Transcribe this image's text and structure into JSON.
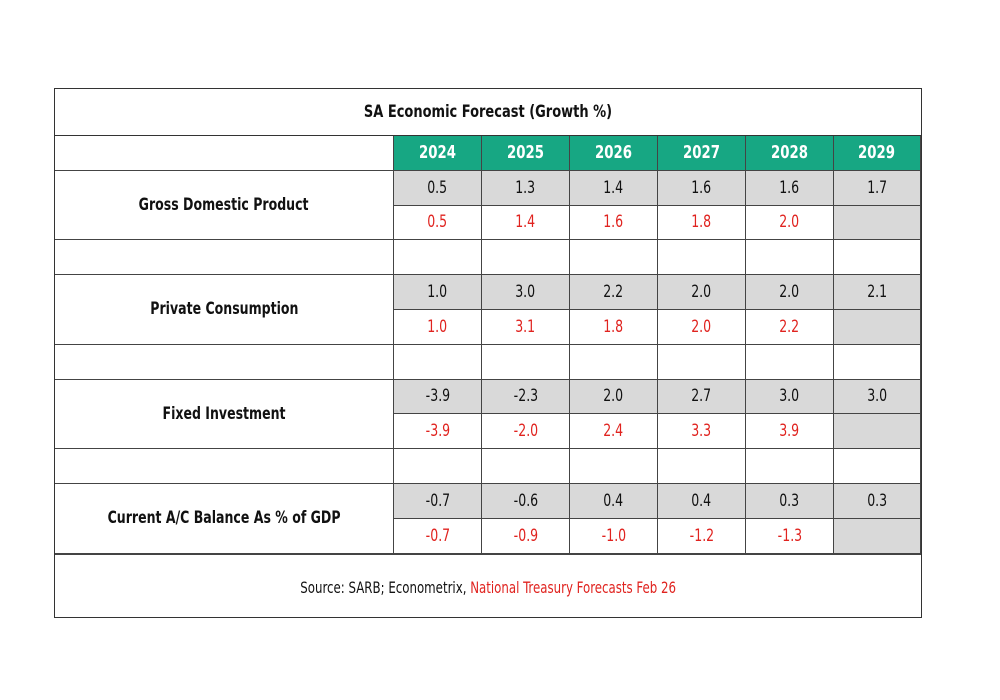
{
  "chart_data": {
    "type": "table",
    "title": "SA Economic Forecast (Growth %)",
    "years": [
      "2024",
      "2025",
      "2026",
      "2027",
      "2028",
      "2029"
    ],
    "rows": [
      {
        "label": "Gross Domestic Product",
        "projection": [
          "0.5",
          "1.3",
          "1.4",
          "1.6",
          "1.6",
          "1.7"
        ],
        "treasury": [
          "0.5",
          "1.4",
          "1.6",
          "1.8",
          "2.0",
          ""
        ]
      },
      {
        "label": "Private Consumption",
        "projection": [
          "1.0",
          "3.0",
          "2.2",
          "2.0",
          "2.0",
          "2.1"
        ],
        "treasury": [
          "1.0",
          "3.1",
          "1.8",
          "2.0",
          "2.2",
          ""
        ]
      },
      {
        "label": "Fixed Investment",
        "projection": [
          "-3.9",
          "-2.3",
          "2.0",
          "2.7",
          "3.0",
          "3.0"
        ],
        "treasury": [
          "-3.9",
          "-2.0",
          "2.4",
          "3.3",
          "3.9",
          ""
        ]
      },
      {
        "label": "Current A/C Balance As % of GDP",
        "projection": [
          "-0.7",
          "-0.6",
          "0.4",
          "0.4",
          "0.3",
          "0.3"
        ],
        "treasury": [
          "-0.7",
          "-0.9",
          "-1.0",
          "-1.2",
          "-1.3",
          ""
        ]
      }
    ],
    "source_prefix": "Source: SARB; Econometrix, ",
    "source_highlight": "National Treasury Forecasts Feb 26",
    "colors": {
      "header": "#17a783",
      "projection_fill": "#d9d9d9",
      "treasury_text": "#e0231f"
    }
  }
}
